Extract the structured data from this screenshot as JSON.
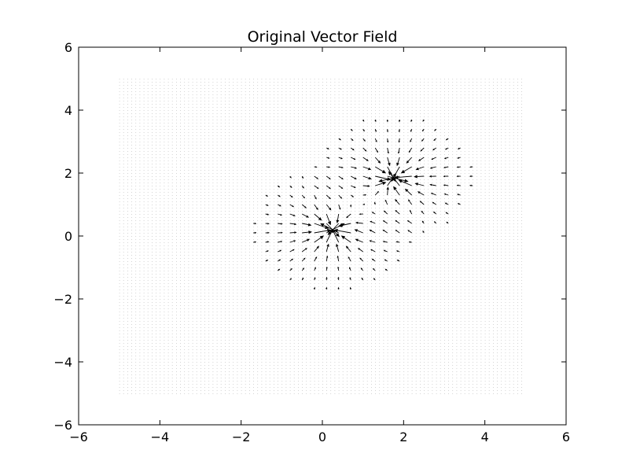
{
  "chart_data": {
    "type": "quiver",
    "title": "Original Vector Field",
    "xlabel": "",
    "ylabel": "",
    "xlim": [
      -6,
      6
    ],
    "ylim": [
      -6,
      6
    ],
    "xticks": [
      -6,
      -4,
      -2,
      0,
      2,
      4,
      6
    ],
    "yticks": [
      -6,
      -4,
      -2,
      0,
      2,
      4,
      6
    ],
    "xtick_labels": [
      "−6",
      "−4",
      "−2",
      "0",
      "2",
      "4",
      "6"
    ],
    "ytick_labels": [
      "−6",
      "−4",
      "−2",
      "0",
      "2",
      "4",
      "6"
    ],
    "grid": false,
    "sample_region": {
      "x": [
        -5,
        5
      ],
      "y": [
        -5,
        5
      ]
    },
    "sources": [
      {
        "x": 0.25,
        "y": 0.2,
        "radius": 2.0,
        "direction": "inward"
      },
      {
        "x": 1.75,
        "y": 1.85,
        "radius": 2.0,
        "direction": "inward"
      }
    ],
    "arrow_color": "#000000",
    "dot_color": "#bdbdbd"
  }
}
